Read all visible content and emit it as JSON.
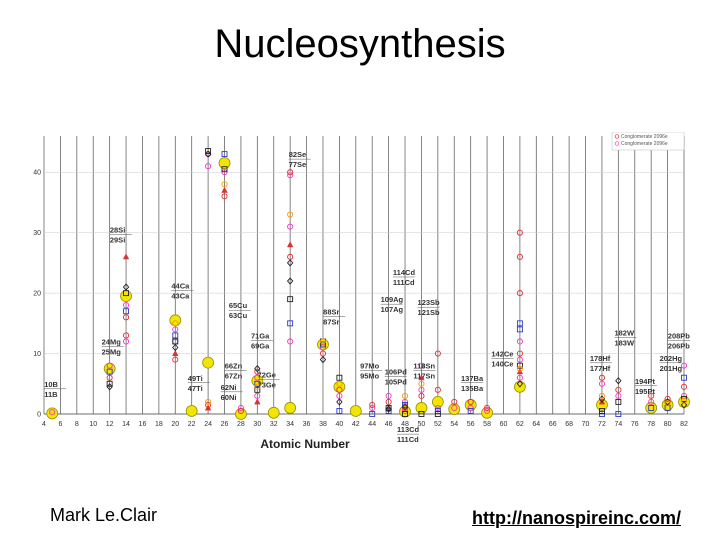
{
  "slide": {
    "title": "Nucleosynthesis",
    "author": "Mark Le.Clair",
    "url": "http://nanospireinc.com/"
  },
  "chart_data": {
    "type": "scatter",
    "xlabel": "Atomic Number",
    "ylabel": "",
    "xlim": [
      4,
      82
    ],
    "ylim": [
      0,
      45
    ],
    "x_ticks": [
      4,
      6,
      8,
      10,
      12,
      14,
      16,
      18,
      20,
      22,
      24,
      26,
      28,
      30,
      32,
      34,
      36,
      38,
      40,
      42,
      44,
      46,
      48,
      50,
      52,
      54,
      56,
      58,
      60,
      62,
      64,
      66,
      68,
      70,
      72,
      74,
      76,
      78,
      80,
      82
    ],
    "y_ticks": [
      0,
      10,
      20,
      30,
      40
    ],
    "grid": true,
    "legend_position": "top-right",
    "legend": [
      "Conglomerate 2096e",
      "Conglomerate 2096e"
    ],
    "colors": {
      "yellow": "#f2e600",
      "pink": "#ff33cc",
      "red": "#e03030",
      "blue": "#2a3ad0",
      "black": "#222222",
      "orange": "#ff9900"
    },
    "annotations": [
      {
        "x": 5,
        "y": 4.5,
        "lines": [
          "10B",
          "11B"
        ]
      },
      {
        "x": 12,
        "y": 11.5,
        "lines": [
          "24Mg",
          "25Mg"
        ]
      },
      {
        "x": 13,
        "y": 30,
        "lines": [
          "28Si",
          "29Si"
        ]
      },
      {
        "x": 20.5,
        "y": 20.8,
        "lines": [
          "44Ca",
          "43Ca"
        ]
      },
      {
        "x": 22.5,
        "y": 5.5,
        "lines": [
          "49Ti",
          "47Ti"
        ]
      },
      {
        "x": 27.5,
        "y": 17.5,
        "lines": [
          "65Cu",
          "63Cu"
        ]
      },
      {
        "x": 27,
        "y": 7.5,
        "lines": [
          "66Zn",
          "67Zn"
        ]
      },
      {
        "x": 26.5,
        "y": 4.0,
        "lines": [
          "62Ni",
          "60Ni"
        ]
      },
      {
        "x": 30.2,
        "y": 12.5,
        "lines": [
          "71Ga",
          "69Ga"
        ]
      },
      {
        "x": 31,
        "y": 6.0,
        "lines": [
          "72Ge",
          "73Ge"
        ]
      },
      {
        "x": 34.8,
        "y": 42.5,
        "lines": [
          "82Se",
          "77Se"
        ]
      },
      {
        "x": 39,
        "y": 16.5,
        "lines": [
          "88Sr",
          "87Sr"
        ]
      },
      {
        "x": 43.5,
        "y": 7.5,
        "lines": [
          "97Mo",
          "95Mo"
        ]
      },
      {
        "x": 47.5,
        "y": 23,
        "lines": [
          "114Cd",
          "111Cd"
        ]
      },
      {
        "x": 46,
        "y": 18.5,
        "lines": [
          "109Ag",
          "107Ag"
        ]
      },
      {
        "x": 50.5,
        "y": 18,
        "lines": [
          "123Sb",
          "121Sb"
        ]
      },
      {
        "x": 46.5,
        "y": 6.5,
        "lines": [
          "106Pd",
          "105Pd"
        ]
      },
      {
        "x": 50,
        "y": 7.5,
        "lines": [
          "118Sn",
          "117Sn"
        ]
      },
      {
        "x": 48,
        "y": -3.0,
        "lines": [
          "113Cd",
          "111Cd"
        ]
      },
      {
        "x": 55.8,
        "y": 5.5,
        "lines": [
          "137Ba",
          "135Ba"
        ]
      },
      {
        "x": 59.5,
        "y": 9.5,
        "lines": [
          "142Ce",
          "140Ce"
        ]
      },
      {
        "x": 71.5,
        "y": 8.8,
        "lines": [
          "178Hf",
          "177Hf"
        ]
      },
      {
        "x": 74.5,
        "y": 13.0,
        "lines": [
          "182W",
          "183W"
        ]
      },
      {
        "x": 77,
        "y": 5.0,
        "lines": [
          "194Pt",
          "195Pt"
        ]
      },
      {
        "x": 80,
        "y": 8.8,
        "lines": [
          "202Hg",
          "201Hg"
        ]
      },
      {
        "x": 81,
        "y": 12.5,
        "lines": [
          "208Pb",
          "206Pb"
        ]
      }
    ],
    "series": [
      {
        "color": "yellow",
        "shape": "big-circle",
        "points": [
          [
            5,
            0.1
          ],
          [
            12,
            7.5
          ],
          [
            14,
            19.5
          ],
          [
            20,
            15.5
          ],
          [
            22,
            0.5
          ],
          [
            24,
            8.5
          ],
          [
            26,
            41.5
          ],
          [
            28,
            0
          ],
          [
            30,
            5.5
          ],
          [
            32,
            0.2
          ],
          [
            34,
            1.0
          ],
          [
            38,
            11.5
          ],
          [
            40,
            4.5
          ],
          [
            42,
            0.5
          ],
          [
            48,
            0.4
          ],
          [
            50,
            1.0
          ],
          [
            52,
            2.0
          ],
          [
            54,
            0.8
          ],
          [
            56,
            1.5
          ],
          [
            58,
            0.2
          ],
          [
            62,
            4.5
          ],
          [
            72,
            1.5
          ],
          [
            78,
            1.0
          ],
          [
            80,
            1.5
          ],
          [
            82,
            2.0
          ]
        ]
      },
      {
        "color": "pink",
        "shape": "circle",
        "points": [
          [
            5,
            0.3
          ],
          [
            12,
            8
          ],
          [
            14,
            18
          ],
          [
            14,
            12
          ],
          [
            20,
            14
          ],
          [
            20,
            12
          ],
          [
            24,
            43
          ],
          [
            24,
            41
          ],
          [
            26,
            40
          ],
          [
            28,
            1
          ],
          [
            30,
            3
          ],
          [
            30,
            6
          ],
          [
            34,
            39.5
          ],
          [
            34,
            31
          ],
          [
            34,
            12
          ],
          [
            38,
            11
          ],
          [
            40,
            3
          ],
          [
            44,
            1
          ],
          [
            46,
            3
          ],
          [
            48,
            0.5
          ],
          [
            48,
            2
          ],
          [
            50,
            4
          ],
          [
            50,
            8
          ],
          [
            52,
            1
          ],
          [
            54,
            1
          ],
          [
            56,
            1
          ],
          [
            58,
            0.5
          ],
          [
            62,
            6
          ],
          [
            62,
            9
          ],
          [
            62,
            12
          ],
          [
            72,
            5
          ],
          [
            74,
            3
          ],
          [
            78,
            2
          ],
          [
            80,
            2
          ],
          [
            82,
            3
          ],
          [
            82,
            8
          ]
        ]
      },
      {
        "color": "red",
        "shape": "circle",
        "points": [
          [
            12,
            6
          ],
          [
            14,
            16
          ],
          [
            14,
            13
          ],
          [
            20,
            9
          ],
          [
            24,
            1.5
          ],
          [
            26,
            36
          ],
          [
            28,
            0.5
          ],
          [
            30,
            7
          ],
          [
            34,
            40
          ],
          [
            34,
            26
          ],
          [
            38,
            10
          ],
          [
            40,
            4
          ],
          [
            44,
            1.5
          ],
          [
            46,
            2
          ],
          [
            48,
            1
          ],
          [
            50,
            3
          ],
          [
            52,
            10
          ],
          [
            52,
            4
          ],
          [
            54,
            2
          ],
          [
            56,
            2
          ],
          [
            58,
            1
          ],
          [
            62,
            30
          ],
          [
            62,
            26
          ],
          [
            62,
            20
          ],
          [
            62,
            10
          ],
          [
            72,
            6
          ],
          [
            74,
            4
          ],
          [
            78,
            3
          ],
          [
            80,
            2.5
          ],
          [
            82,
            4.5
          ]
        ]
      },
      {
        "color": "red",
        "shape": "triangle",
        "points": [
          [
            14,
            26
          ],
          [
            20,
            10
          ],
          [
            24,
            1
          ],
          [
            26,
            37
          ],
          [
            30,
            2
          ],
          [
            34,
            28
          ],
          [
            46,
            1
          ],
          [
            50,
            6
          ],
          [
            62,
            7
          ],
          [
            72,
            2
          ]
        ]
      },
      {
        "color": "blue",
        "shape": "square",
        "points": [
          [
            12,
            7
          ],
          [
            14,
            17
          ],
          [
            20,
            13
          ],
          [
            26,
            43
          ],
          [
            30,
            5
          ],
          [
            34,
            15
          ],
          [
            38,
            11.5
          ],
          [
            40,
            0.5
          ],
          [
            44,
            0
          ],
          [
            46,
            0.5
          ],
          [
            48,
            1.5
          ],
          [
            52,
            0.5
          ],
          [
            56,
            0.5
          ],
          [
            62,
            15
          ],
          [
            62,
            14
          ],
          [
            72,
            0
          ],
          [
            74,
            0
          ],
          [
            78,
            1
          ],
          [
            80,
            1
          ],
          [
            82,
            6
          ]
        ]
      },
      {
        "color": "black",
        "shape": "square",
        "points": [
          [
            12,
            5
          ],
          [
            14,
            20
          ],
          [
            20,
            12
          ],
          [
            24,
            43.5
          ],
          [
            26,
            40.5
          ],
          [
            30,
            4
          ],
          [
            34,
            19
          ],
          [
            38,
            12
          ],
          [
            40,
            6
          ],
          [
            46,
            1
          ],
          [
            48,
            0
          ],
          [
            50,
            0
          ],
          [
            52,
            0
          ],
          [
            62,
            8
          ],
          [
            72,
            0.5
          ],
          [
            74,
            2
          ],
          [
            82,
            2.5
          ]
        ]
      },
      {
        "color": "black",
        "shape": "diamond",
        "points": [
          [
            12,
            4.5
          ],
          [
            14,
            21
          ],
          [
            20,
            11
          ],
          [
            24,
            43
          ],
          [
            30,
            7.5
          ],
          [
            34,
            22
          ],
          [
            34,
            25
          ],
          [
            38,
            9
          ],
          [
            40,
            2
          ],
          [
            46,
            0.8
          ],
          [
            48,
            1.2
          ],
          [
            62,
            5
          ],
          [
            72,
            2.5
          ],
          [
            74,
            5.5
          ],
          [
            80,
            2
          ],
          [
            82,
            1.5
          ]
        ]
      },
      {
        "color": "orange",
        "shape": "circle",
        "points": [
          [
            20,
            15
          ],
          [
            24,
            2
          ],
          [
            26,
            38
          ],
          [
            30,
            4.5
          ],
          [
            34,
            33
          ],
          [
            38,
            12
          ],
          [
            40,
            5
          ],
          [
            48,
            3
          ],
          [
            50,
            5
          ],
          [
            62,
            7.5
          ],
          [
            72,
            3
          ],
          [
            80,
            1.8
          ],
          [
            82,
            2.2
          ]
        ]
      }
    ]
  }
}
